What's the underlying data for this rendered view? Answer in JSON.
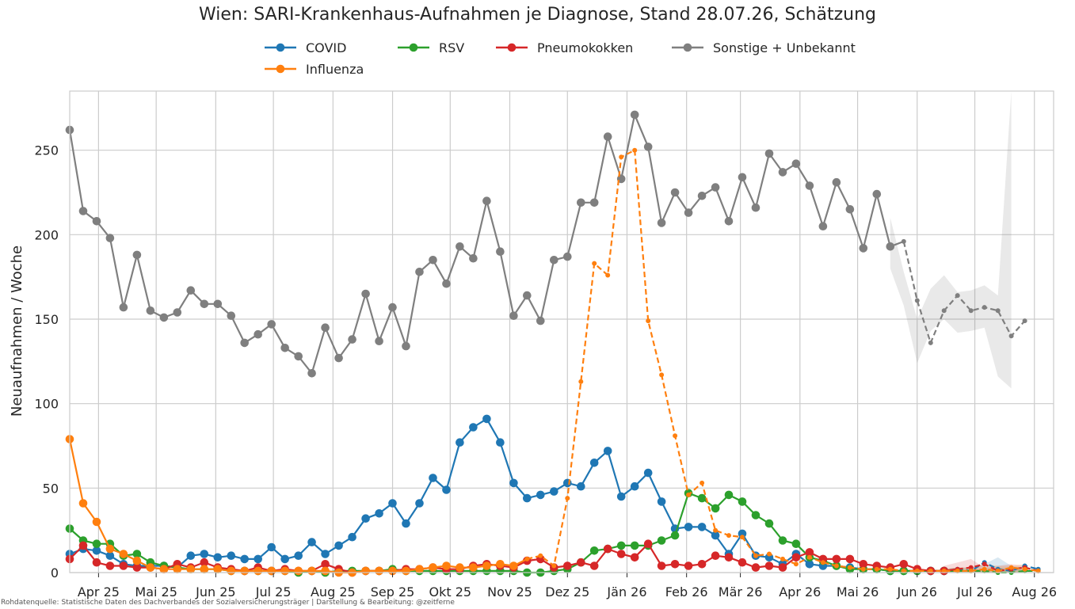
{
  "chart_data": {
    "type": "line",
    "title": "Wien: SARI-Krankenhaus-Aufnahmen je Diagnose, Stand 28.07.26, Schätzung",
    "ylabel": "Neuaufnahmen / Woche",
    "xlabel": "",
    "footer": "Rohdatenquelle: Statistische Daten des Dachverbandes der Sozialversicherungsträger | Darstellung & Bearbeitung: @zeitferne",
    "ylim": [
      0,
      285
    ],
    "yticks": [
      0,
      50,
      100,
      150,
      200,
      250
    ],
    "x_start": "2025-03-17",
    "x_ticks": [
      {
        "date": "2025-04-01",
        "label": "Apr 25"
      },
      {
        "date": "2025-05-01",
        "label": "Mai 25"
      },
      {
        "date": "2025-06-01",
        "label": "Jun 25"
      },
      {
        "date": "2025-07-01",
        "label": "Jul 25"
      },
      {
        "date": "2025-08-01",
        "label": "Aug 25"
      },
      {
        "date": "2025-09-01",
        "label": "Sep 25"
      },
      {
        "date": "2025-10-01",
        "label": "Okt 25"
      },
      {
        "date": "2025-11-01",
        "label": "Nov 25"
      },
      {
        "date": "2025-12-01",
        "label": "Dez 25"
      },
      {
        "date": "2026-01-01",
        "label": "Jän 26"
      },
      {
        "date": "2026-02-01",
        "label": "Feb 26"
      },
      {
        "date": "2026-03-01",
        "label": "Mär 26"
      },
      {
        "date": "2026-04-01",
        "label": "Apr 26"
      },
      {
        "date": "2026-05-01",
        "label": "Mai 26"
      },
      {
        "date": "2026-06-01",
        "label": "Jun 26"
      },
      {
        "date": "2026-07-01",
        "label": "Jul 26"
      },
      {
        "date": "2026-08-01",
        "label": "Aug 26"
      }
    ],
    "x_end": "2026-08-11",
    "grid": true,
    "legend_position": "top-center",
    "series": [
      {
        "name": "COVID",
        "color": "#1f77b4",
        "values": [
          11,
          14,
          13,
          10,
          5,
          4,
          4,
          4,
          3,
          10,
          11,
          9,
          10,
          8,
          8,
          15,
          8,
          10,
          18,
          11,
          16,
          21,
          32,
          35,
          41,
          29,
          41,
          56,
          49,
          77,
          86,
          91,
          77,
          53,
          44,
          46,
          48,
          53,
          51,
          65,
          72,
          45,
          51,
          59,
          42,
          26,
          27,
          27,
          22,
          11,
          23,
          10,
          9,
          5,
          11,
          5,
          4,
          4,
          3,
          2,
          2,
          1,
          1,
          1,
          1,
          1,
          2,
          1,
          6,
          2,
          1,
          4,
          2
        ],
        "estimate_from": 66,
        "band": [
          [
            0,
            2
          ],
          [
            0,
            3
          ],
          [
            0,
            3
          ],
          [
            0,
            5
          ],
          [
            0,
            9
          ],
          [
            0,
            4
          ],
          [
            0,
            3
          ]
        ]
      },
      {
        "name": "RSV",
        "color": "#2ca02c",
        "values": [
          26,
          19,
          17,
          17,
          10,
          11,
          6,
          4,
          3,
          2,
          2,
          2,
          1,
          1,
          1,
          1,
          1,
          0,
          1,
          0,
          1,
          1,
          1,
          1,
          2,
          1,
          1,
          1,
          1,
          1,
          1,
          1,
          1,
          1,
          0,
          0,
          1,
          2,
          6,
          13,
          14,
          16,
          16,
          16,
          19,
          22,
          47,
          44,
          38,
          46,
          42,
          34,
          29,
          19,
          17,
          9,
          7,
          4,
          2,
          2,
          2,
          1,
          1,
          1,
          1,
          1,
          1,
          1,
          1,
          0,
          0,
          1,
          1
        ],
        "estimate_from": 66,
        "band": [
          [
            0,
            2
          ],
          [
            0,
            3
          ],
          [
            0,
            2
          ],
          [
            0,
            2
          ],
          [
            0,
            3
          ],
          [
            0,
            2
          ],
          [
            0,
            2
          ]
        ]
      },
      {
        "name": "Pneumokokken",
        "color": "#d62728",
        "values": [
          8,
          16,
          6,
          4,
          4,
          3,
          3,
          2,
          5,
          3,
          6,
          3,
          2,
          1,
          3,
          1,
          2,
          1,
          1,
          5,
          2,
          0,
          1,
          1,
          1,
          2,
          2,
          3,
          2,
          2,
          4,
          5,
          4,
          3,
          7,
          8,
          3,
          4,
          6,
          4,
          14,
          11,
          9,
          17,
          4,
          5,
          4,
          5,
          10,
          9,
          6,
          3,
          4,
          3,
          9,
          12,
          8,
          8,
          8,
          5,
          4,
          3,
          5,
          2,
          1,
          1,
          2,
          3,
          5,
          1,
          2,
          3,
          1
        ],
        "estimate_from": 66,
        "band": [
          [
            1,
            4
          ],
          [
            2,
            6
          ],
          [
            2,
            8
          ],
          [
            0,
            3
          ],
          [
            0,
            4
          ],
          [
            0,
            5
          ],
          [
            0,
            4
          ]
        ]
      },
      {
        "name": "Sonstige + Unbekannt",
        "color": "#7f7f7f",
        "values": [
          262,
          214,
          208,
          198,
          157,
          188,
          155,
          151,
          154,
          167,
          159,
          159,
          152,
          136,
          141,
          147,
          133,
          128,
          118,
          145,
          127,
          138,
          165,
          137,
          157,
          134,
          178,
          185,
          171,
          193,
          186,
          220,
          190,
          152,
          164,
          149,
          185,
          187,
          219,
          219,
          258,
          233,
          271,
          252,
          207,
          225,
          213,
          223,
          228,
          208,
          234,
          216,
          248,
          237,
          242,
          229,
          205,
          231,
          215,
          192,
          224,
          193,
          196,
          161,
          136,
          155,
          164,
          155,
          157,
          155,
          140,
          149
        ],
        "estimate_from": 62,
        "band": [
          [
            180,
            210
          ],
          [
            158,
            178
          ],
          [
            124,
            150
          ],
          [
            143,
            168
          ],
          [
            150,
            176
          ],
          [
            142,
            166
          ],
          [
            143,
            167
          ],
          [
            145,
            170
          ],
          [
            116,
            164
          ],
          [
            109,
            285
          ]
        ]
      },
      {
        "name": "Influenza",
        "color": "#ff7f0e",
        "values": [
          79,
          41,
          30,
          14,
          11,
          7,
          3,
          2,
          2,
          2,
          2,
          2,
          1,
          1,
          1,
          1,
          1,
          1,
          1,
          1,
          0,
          0,
          1,
          1,
          1,
          1,
          2,
          3,
          4,
          3,
          3,
          4,
          5,
          4,
          8,
          10,
          4,
          44,
          113,
          183,
          176,
          246,
          250,
          149,
          117,
          81,
          46,
          53,
          25,
          22,
          21,
          10,
          11,
          8,
          5,
          9,
          6,
          4,
          3,
          2,
          2,
          2,
          1,
          1,
          1,
          1,
          1,
          1,
          2,
          1,
          3,
          2,
          1
        ],
        "dashed_from": 34,
        "estimate_from": 66,
        "band": [
          [
            0,
            2
          ],
          [
            0,
            3
          ],
          [
            0,
            3
          ],
          [
            0,
            5
          ],
          [
            0,
            4
          ],
          [
            0,
            4
          ],
          [
            0,
            5
          ]
        ]
      }
    ]
  }
}
